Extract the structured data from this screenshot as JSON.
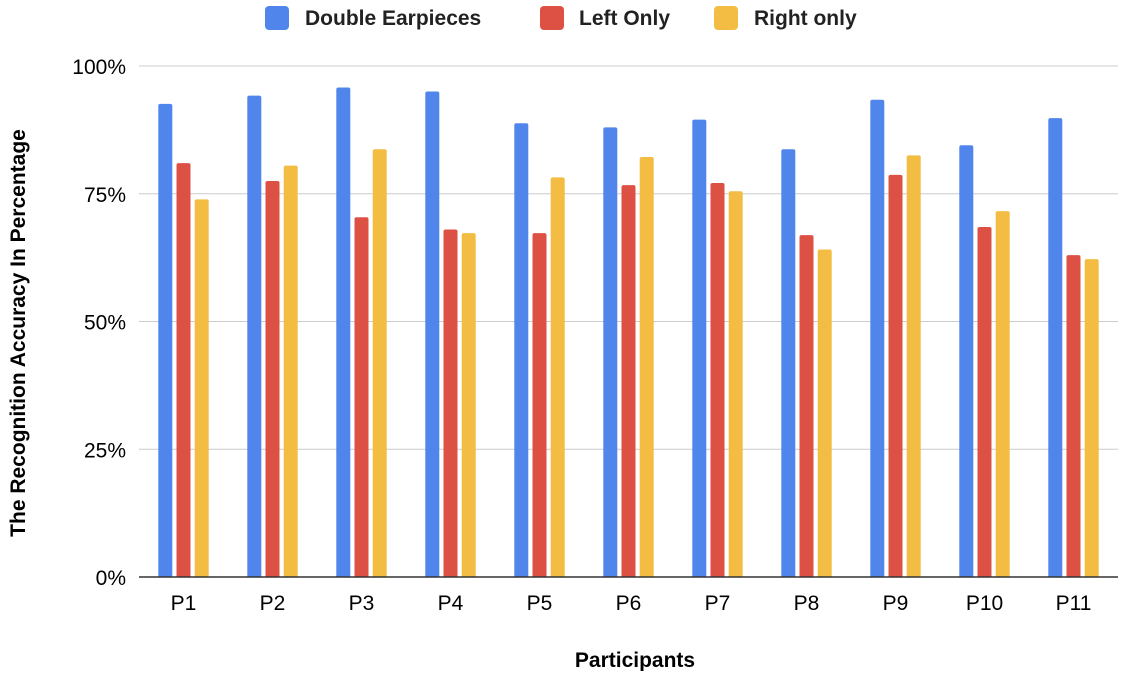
{
  "chart_data": {
    "type": "bar",
    "title": "",
    "xlabel": "Participants",
    "ylabel": "The Recognition Accuracy In Percentage",
    "categories": [
      "P1",
      "P2",
      "P3",
      "P4",
      "P5",
      "P6",
      "P7",
      "P8",
      "P9",
      "P10",
      "P11"
    ],
    "series": [
      {
        "name": "Double Earpieces",
        "color": "#5086ec",
        "values": [
          92.6,
          94.2,
          95.8,
          95.0,
          88.8,
          88.0,
          89.5,
          83.7,
          93.4,
          84.5,
          89.8
        ]
      },
      {
        "name": "Left Only",
        "color": "#dd5144",
        "values": [
          81.0,
          77.5,
          70.4,
          68.0,
          67.3,
          76.7,
          77.1,
          66.9,
          78.7,
          68.5,
          63.0
        ]
      },
      {
        "name": "Right only",
        "color": "#f2bd42",
        "values": [
          73.9,
          80.5,
          83.7,
          67.3,
          78.2,
          82.2,
          75.5,
          64.1,
          82.5,
          71.6,
          62.2
        ]
      }
    ],
    "ylim": [
      0,
      100
    ],
    "yticks": [
      0,
      25,
      50,
      75,
      100
    ],
    "ytick_labels": [
      "0%",
      "25%",
      "50%",
      "75%",
      "100%"
    ],
    "grid": true,
    "legend_position": "top"
  }
}
